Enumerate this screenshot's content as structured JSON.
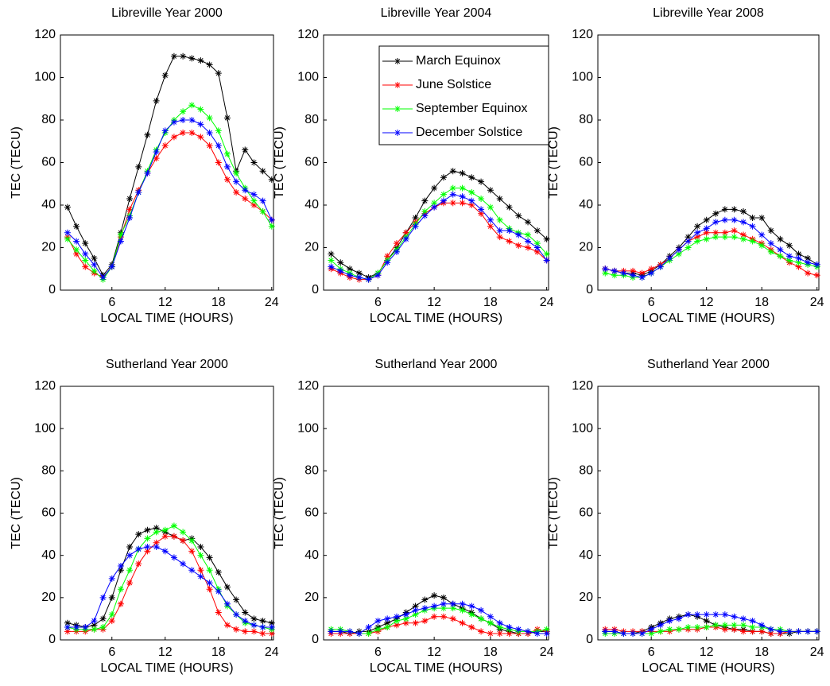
{
  "chart_data": [
    {
      "type": "line",
      "title": "Libreville Year 2000",
      "xlabel": "LOCAL TIME (HOURS)",
      "ylabel": "TEC (TECU)",
      "x": [
        1,
        2,
        3,
        4,
        5,
        6,
        7,
        8,
        9,
        10,
        11,
        12,
        13,
        14,
        15,
        16,
        17,
        18,
        19,
        20,
        21,
        22,
        23,
        24
      ],
      "xlim": [
        0.2,
        24.2
      ],
      "xticks": [
        6,
        12,
        18,
        24
      ],
      "ylim": [
        0,
        120
      ],
      "yticks": [
        0,
        20,
        40,
        60,
        80,
        100,
        120
      ],
      "series": [
        {
          "color": "#000000",
          "values": [
            39,
            30,
            22,
            15,
            7,
            12,
            27,
            43,
            58,
            73,
            89,
            101,
            110,
            110,
            109,
            108,
            106,
            102,
            81,
            56,
            66,
            60,
            56,
            52
          ]
        },
        {
          "color": "#ff0000",
          "values": [
            25,
            17,
            11,
            8,
            6,
            11,
            25,
            38,
            47,
            55,
            62,
            68,
            72,
            74,
            74,
            72,
            68,
            60,
            52,
            46,
            43,
            40,
            37,
            33
          ]
        },
        {
          "color": "#00ff00",
          "values": [
            24,
            19,
            14,
            9,
            5,
            11,
            26,
            35,
            46,
            56,
            66,
            74,
            80,
            84,
            87,
            85,
            81,
            75,
            64,
            55,
            48,
            42,
            37,
            30
          ]
        },
        {
          "color": "#0000ff",
          "values": [
            27,
            23,
            17,
            12,
            6,
            11,
            23,
            34,
            46,
            55,
            65,
            75,
            79,
            80,
            80,
            78,
            74,
            68,
            58,
            51,
            47,
            45,
            42,
            33
          ]
        }
      ]
    },
    {
      "type": "line",
      "title": "Libreville Year 2004",
      "xlabel": "LOCAL TIME (HOURS)",
      "ylabel": "TEC (TECU)",
      "legend": "upper-center",
      "x": [
        1,
        2,
        3,
        4,
        5,
        6,
        7,
        8,
        9,
        10,
        11,
        12,
        13,
        14,
        15,
        16,
        17,
        18,
        19,
        20,
        21,
        22,
        23,
        24
      ],
      "xlim": [
        0.2,
        24.2
      ],
      "xticks": [
        6,
        12,
        18,
        24
      ],
      "ylim": [
        0,
        120
      ],
      "yticks": [
        0,
        20,
        40,
        60,
        80,
        100,
        120
      ],
      "series": [
        {
          "name": "March Equinox",
          "color": "#000000",
          "values": [
            17,
            13,
            10,
            8,
            6,
            8,
            14,
            20,
            27,
            34,
            42,
            48,
            53,
            56,
            55,
            53,
            51,
            47,
            43,
            39,
            35,
            32,
            28,
            24
          ]
        },
        {
          "name": "June Solstice",
          "color": "#ff0000",
          "values": [
            10,
            8,
            6,
            5,
            5,
            7,
            16,
            22,
            27,
            32,
            36,
            39,
            41,
            41,
            41,
            40,
            36,
            30,
            25,
            23,
            21,
            20,
            18,
            14
          ]
        },
        {
          "name": "September Equinox",
          "color": "#00ff00",
          "values": [
            14,
            10,
            8,
            6,
            5,
            8,
            14,
            19,
            25,
            31,
            37,
            41,
            45,
            48,
            48,
            46,
            43,
            39,
            33,
            29,
            27,
            26,
            22,
            17
          ]
        },
        {
          "name": "December Solstice",
          "color": "#0000ff",
          "values": [
            11,
            9,
            7,
            6,
            5,
            7,
            13,
            18,
            24,
            30,
            35,
            39,
            42,
            45,
            44,
            42,
            38,
            33,
            28,
            28,
            26,
            23,
            20,
            14
          ]
        }
      ]
    },
    {
      "type": "line",
      "title": "Libreville Year 2008",
      "xlabel": "LOCAL TIME (HOURS)",
      "ylabel": "TEC (TECU)",
      "x": [
        1,
        2,
        3,
        4,
        5,
        6,
        7,
        8,
        9,
        10,
        11,
        12,
        13,
        14,
        15,
        16,
        17,
        18,
        19,
        20,
        21,
        22,
        23,
        24
      ],
      "xlim": [
        0.2,
        24.2
      ],
      "xticks": [
        6,
        12,
        18,
        24
      ],
      "ylim": [
        0,
        120
      ],
      "yticks": [
        0,
        20,
        40,
        60,
        80,
        100,
        120
      ],
      "series": [
        {
          "color": "#000000",
          "values": [
            10,
            9,
            8,
            8,
            7,
            9,
            12,
            16,
            20,
            25,
            30,
            33,
            36,
            38,
            38,
            37,
            34,
            34,
            28,
            24,
            21,
            17,
            15,
            12
          ]
        },
        {
          "color": "#ff0000",
          "values": [
            10,
            9,
            9,
            9,
            8,
            10,
            12,
            15,
            19,
            23,
            25,
            27,
            27,
            27,
            28,
            26,
            24,
            22,
            19,
            16,
            13,
            11,
            8,
            7
          ]
        },
        {
          "color": "#00ff00",
          "values": [
            8,
            7,
            7,
            6,
            6,
            8,
            11,
            14,
            17,
            20,
            23,
            24,
            25,
            25,
            25,
            24,
            23,
            21,
            18,
            16,
            14,
            13,
            12,
            11
          ]
        },
        {
          "color": "#0000ff",
          "values": [
            10,
            9,
            8,
            7,
            6,
            8,
            11,
            15,
            19,
            23,
            27,
            29,
            32,
            33,
            33,
            32,
            30,
            26,
            22,
            19,
            16,
            15,
            13,
            12
          ]
        }
      ]
    },
    {
      "type": "line",
      "title": "Sutherland Year 2000",
      "xlabel": "LOCAL TIME (HOURS)",
      "ylabel": "TEC (TECU)",
      "x": [
        1,
        2,
        3,
        4,
        5,
        6,
        7,
        8,
        9,
        10,
        11,
        12,
        13,
        14,
        15,
        16,
        17,
        18,
        19,
        20,
        21,
        22,
        23,
        24
      ],
      "xlim": [
        0.2,
        24.2
      ],
      "xticks": [
        6,
        12,
        18,
        24
      ],
      "ylim": [
        0,
        120
      ],
      "yticks": [
        0,
        20,
        40,
        60,
        80,
        100,
        120
      ],
      "series": [
        {
          "color": "#000000",
          "values": [
            8,
            7,
            6,
            7,
            10,
            20,
            33,
            44,
            50,
            52,
            53,
            51,
            49,
            47,
            48,
            44,
            39,
            32,
            25,
            19,
            13,
            10,
            9,
            8
          ]
        },
        {
          "color": "#ff0000",
          "values": [
            4,
            4,
            4,
            5,
            5,
            9,
            17,
            27,
            36,
            42,
            46,
            49,
            49,
            47,
            42,
            33,
            24,
            13,
            7,
            5,
            4,
            4,
            3,
            3
          ]
        },
        {
          "color": "#00ff00",
          "values": [
            6,
            5,
            5,
            5,
            6,
            12,
            24,
            33,
            43,
            48,
            51,
            52,
            54,
            51,
            47,
            40,
            33,
            24,
            16,
            12,
            8,
            7,
            6,
            5
          ]
        },
        {
          "color": "#0000ff",
          "values": [
            6,
            6,
            6,
            9,
            20,
            29,
            35,
            40,
            43,
            44,
            44,
            42,
            39,
            36,
            33,
            30,
            27,
            23,
            17,
            12,
            9,
            7,
            6,
            6
          ]
        }
      ]
    },
    {
      "type": "line",
      "title": "Sutherland Year 2000",
      "xlabel": "LOCAL TIME (HOURS)",
      "ylabel": "TEC (TECU)",
      "x": [
        1,
        2,
        3,
        4,
        5,
        6,
        7,
        8,
        9,
        10,
        11,
        12,
        13,
        14,
        15,
        16,
        17,
        18,
        19,
        20,
        21,
        22,
        23,
        24
      ],
      "xlim": [
        0.2,
        24.2
      ],
      "xticks": [
        6,
        12,
        18,
        24
      ],
      "ylim": [
        0,
        120
      ],
      "yticks": [
        0,
        20,
        40,
        60,
        80,
        100,
        120
      ],
      "series": [
        {
          "color": "#000000",
          "values": [
            4,
            4,
            3,
            4,
            4,
            6,
            8,
            10,
            13,
            16,
            19,
            21,
            20,
            17,
            15,
            13,
            10,
            8,
            5,
            4,
            3,
            3,
            4,
            4
          ]
        },
        {
          "color": "#ff0000",
          "values": [
            3,
            3,
            3,
            3,
            3,
            4,
            6,
            7,
            8,
            8,
            9,
            11,
            11,
            10,
            8,
            6,
            4,
            3,
            3,
            3,
            3,
            3,
            5,
            4
          ]
        },
        {
          "color": "#00ff00",
          "values": [
            5,
            5,
            4,
            3,
            3,
            5,
            6,
            9,
            10,
            12,
            14,
            15,
            15,
            15,
            14,
            12,
            10,
            8,
            6,
            5,
            4,
            4,
            4,
            5
          ]
        },
        {
          "color": "#0000ff",
          "values": [
            4,
            4,
            4,
            3,
            6,
            9,
            10,
            11,
            12,
            14,
            15,
            16,
            17,
            17,
            17,
            16,
            14,
            11,
            8,
            6,
            5,
            4,
            3,
            3
          ]
        }
      ]
    },
    {
      "type": "line",
      "title": "Sutherland Year 2000",
      "xlabel": "LOCAL TIME (HOURS)",
      "ylabel": "TEC (TECU)",
      "x": [
        1,
        2,
        3,
        4,
        5,
        6,
        7,
        8,
        9,
        10,
        11,
        12,
        13,
        14,
        15,
        16,
        17,
        18,
        19,
        20,
        21,
        22,
        23,
        24
      ],
      "xlim": [
        0.2,
        24.2
      ],
      "xticks": [
        6,
        12,
        18,
        24
      ],
      "ylim": [
        0,
        120
      ],
      "yticks": [
        0,
        20,
        40,
        60,
        80,
        100,
        120
      ],
      "series": [
        {
          "color": "#000000",
          "values": [
            4,
            4,
            3,
            3,
            4,
            6,
            8,
            10,
            11,
            12,
            11,
            9,
            7,
            6,
            5,
            5,
            4,
            4,
            3,
            3,
            3,
            4,
            4,
            4
          ]
        },
        {
          "color": "#ff0000",
          "values": [
            5,
            5,
            4,
            4,
            4,
            4,
            4,
            4,
            5,
            5,
            5,
            6,
            6,
            5,
            5,
            4,
            4,
            4,
            3,
            3,
            4,
            4,
            4,
            4
          ]
        },
        {
          "color": "#00ff00",
          "values": [
            3,
            3,
            3,
            3,
            3,
            3,
            4,
            5,
            5,
            6,
            6,
            6,
            7,
            7,
            7,
            7,
            6,
            6,
            5,
            5,
            4,
            4,
            4,
            4
          ]
        },
        {
          "color": "#0000ff",
          "values": [
            4,
            4,
            3,
            3,
            3,
            5,
            7,
            9,
            10,
            12,
            12,
            12,
            12,
            12,
            11,
            10,
            9,
            7,
            5,
            4,
            4,
            4,
            4,
            4
          ]
        }
      ]
    }
  ]
}
